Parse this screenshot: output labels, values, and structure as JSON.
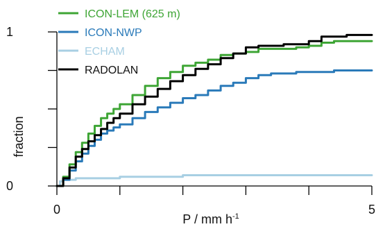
{
  "chart_data": {
    "type": "line",
    "title": "",
    "xlabel": "P / mm h",
    "xlabel_superscript": "-1",
    "ylabel": "fraction",
    "xlim": [
      0,
      5
    ],
    "ylim": [
      0,
      1
    ],
    "x_tick_labels": [
      "0",
      "5"
    ],
    "y_tick_labels": [
      "0",
      "1"
    ],
    "x_ticks": [
      0,
      1,
      2,
      3,
      4,
      5
    ],
    "y_ticks": [
      0,
      0.25,
      0.5,
      0.75,
      1
    ],
    "grid": false,
    "legend_position": "top-left",
    "series": [
      {
        "name": "ICON-LEM (625 m)",
        "color": "#3ea535",
        "x": [
          0,
          0.1,
          0.2,
          0.3,
          0.4,
          0.5,
          0.6,
          0.7,
          0.8,
          0.9,
          1.0,
          1.2,
          1.4,
          1.6,
          1.8,
          2.0,
          2.2,
          2.4,
          2.6,
          2.8,
          3.0,
          3.2,
          3.4,
          3.6,
          3.8,
          4.0,
          4.2,
          4.4,
          4.6,
          4.8,
          5.0
        ],
        "y": [
          0,
          0.06,
          0.14,
          0.22,
          0.28,
          0.34,
          0.39,
          0.44,
          0.47,
          0.5,
          0.53,
          0.59,
          0.65,
          0.7,
          0.74,
          0.78,
          0.8,
          0.82,
          0.85,
          0.86,
          0.87,
          0.89,
          0.89,
          0.89,
          0.9,
          0.91,
          0.93,
          0.94,
          0.94,
          0.94,
          0.94
        ]
      },
      {
        "name": "ICON-NWP",
        "color": "#2a7ab9",
        "x": [
          0,
          0.1,
          0.2,
          0.3,
          0.4,
          0.5,
          0.6,
          0.7,
          0.8,
          0.9,
          1.0,
          1.2,
          1.4,
          1.6,
          1.8,
          2.0,
          2.2,
          2.4,
          2.6,
          2.8,
          3.0,
          3.2,
          3.4,
          3.6,
          3.8,
          4.0,
          4.2,
          4.4,
          4.6,
          4.8,
          5.0
        ],
        "y": [
          0,
          0.04,
          0.1,
          0.16,
          0.21,
          0.26,
          0.3,
          0.34,
          0.36,
          0.38,
          0.4,
          0.44,
          0.48,
          0.51,
          0.54,
          0.57,
          0.59,
          0.62,
          0.65,
          0.67,
          0.7,
          0.72,
          0.73,
          0.73,
          0.74,
          0.74,
          0.74,
          0.75,
          0.75,
          0.75,
          0.75
        ]
      },
      {
        "name": "ECHAM",
        "color": "#a8cfe3",
        "x": [
          0,
          0.05,
          0.1,
          0.3,
          0.5,
          1.0,
          1.5,
          2.0,
          3.0,
          4.0,
          5.0
        ],
        "y": [
          0,
          0.03,
          0.04,
          0.05,
          0.05,
          0.06,
          0.06,
          0.07,
          0.07,
          0.07,
          0.07
        ]
      },
      {
        "name": "RADOLAN",
        "color": "#000000",
        "x": [
          0,
          0.1,
          0.2,
          0.3,
          0.4,
          0.5,
          0.6,
          0.7,
          0.8,
          0.9,
          1.0,
          1.2,
          1.4,
          1.6,
          1.8,
          2.0,
          2.2,
          2.4,
          2.6,
          2.8,
          3.0,
          3.2,
          3.4,
          3.6,
          3.8,
          4.0,
          4.2,
          4.4,
          4.6,
          4.8,
          5.0
        ],
        "y": [
          0,
          0.05,
          0.12,
          0.19,
          0.24,
          0.29,
          0.33,
          0.37,
          0.41,
          0.44,
          0.47,
          0.53,
          0.58,
          0.63,
          0.68,
          0.72,
          0.76,
          0.79,
          0.83,
          0.86,
          0.9,
          0.91,
          0.91,
          0.92,
          0.92,
          0.94,
          0.97,
          0.97,
          0.98,
          0.98,
          0.98
        ]
      }
    ]
  }
}
